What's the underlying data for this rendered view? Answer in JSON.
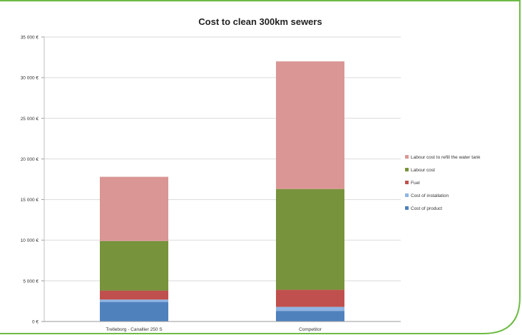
{
  "chart_data": {
    "type": "bar",
    "stacked": true,
    "title": "Cost to clean 300km sewers",
    "categories": [
      "Trelleborg - Canallier 250 S",
      "Competitor"
    ],
    "series": [
      {
        "name": "Cost of product",
        "color": "#4f81bd",
        "values": [
          2400,
          1300
        ]
      },
      {
        "name": "Cost of installation",
        "color": "#8eb4e3",
        "values": [
          300,
          500
        ]
      },
      {
        "name": "Fuel",
        "color": "#c0504d",
        "values": [
          1100,
          2100
        ]
      },
      {
        "name": "Labour cost",
        "color": "#77933c",
        "values": [
          6100,
          12400
        ]
      },
      {
        "name": "Labour cost to refill the water tank",
        "color": "#d99694",
        "values": [
          7900,
          15700
        ]
      }
    ],
    "yticks": [
      "0 €",
      "5 000 €",
      "10 000 €",
      "15 000 €",
      "20 000 €",
      "25 000 €",
      "30 000 €",
      "35 000 €"
    ],
    "ylim": [
      0,
      35000
    ],
    "ytick_step": 5000,
    "grid": true,
    "legend_position": "right",
    "frame_color": "#6dbb45"
  }
}
